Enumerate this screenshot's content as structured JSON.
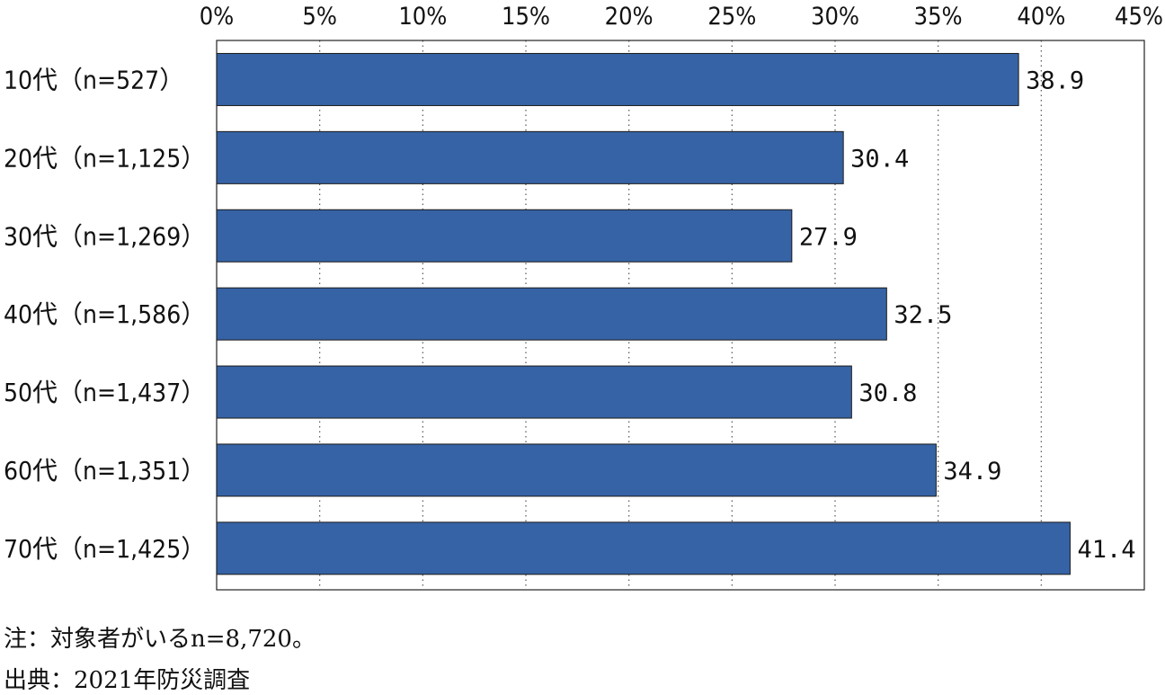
{
  "chart_data": {
    "type": "bar",
    "orientation": "horizontal",
    "categories": [
      "10代（n=527）",
      "20代（n=1,125）",
      "30代（n=1,269）",
      "40代（n=1,586）",
      "50代（n=1,437）",
      "60代（n=1,351）",
      "70代（n=1,425）"
    ],
    "values": [
      38.9,
      30.4,
      27.9,
      32.5,
      30.8,
      34.9,
      41.4
    ],
    "value_labels": [
      "38.9",
      "30.4",
      "27.9",
      "32.5",
      "30.8",
      "34.9",
      "41.4"
    ],
    "xlim": [
      0,
      45
    ],
    "x_ticks": [
      0,
      5,
      10,
      15,
      20,
      25,
      30,
      35,
      40,
      45
    ],
    "x_tick_labels": [
      "0%",
      "5%",
      "10%",
      "15%",
      "20%",
      "25%",
      "30%",
      "35%",
      "40%",
      "45%"
    ],
    "x_axis_position": "top",
    "grid": "vertical-dotted",
    "bar_color": "#3663a5",
    "bar_edge_color": "#1a1a1a"
  },
  "notes": {
    "note": "注：対象者がいるn=8,720。",
    "source": "出典：2021年防災調査"
  }
}
